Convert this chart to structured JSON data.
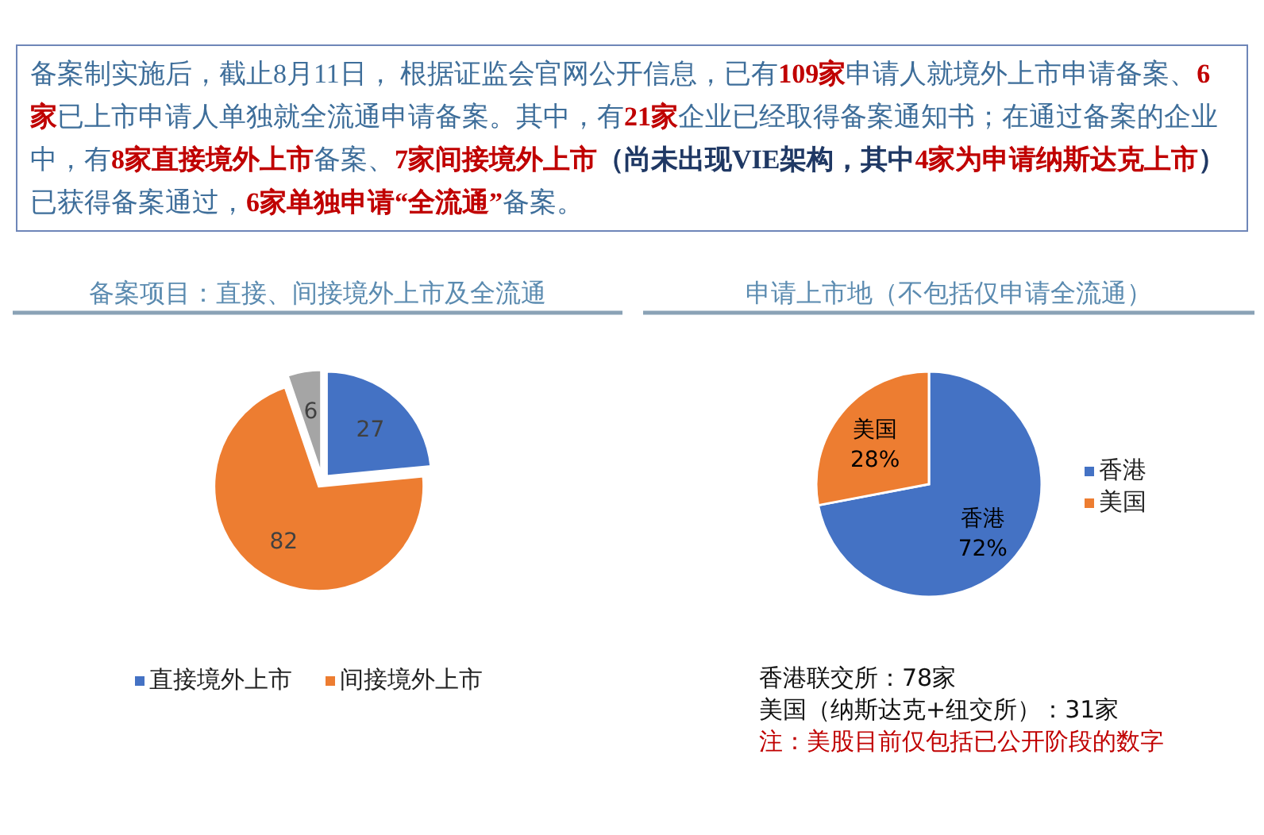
{
  "chart_data": [
    {
      "type": "other",
      "annotations": [
        "备案制实施后，截止8月11日， 根据证监会官网公开信息，已有",
        "109家",
        "申请人就境外上市申请备案、",
        "6家",
        "已上市申请人单独就全流通申请备案。其中，有",
        "21家",
        "企业已经取得备案通知书；在通过备案的企业中，有",
        "8家直接境外上市",
        "备案、",
        "7家间接境外上市",
        "（尚未出现VIE架构，其中",
        "4家为申请纳斯达克上市",
        "）",
        "已获得备案通过，",
        "6家单独申请“全流通”",
        "备案。"
      ],
      "colors": [
        "#3e6e9a",
        "#c00000",
        "#3e6e9a",
        "#c00000",
        "#3e6e9a",
        "#c00000",
        "#3e6e9a",
        "#c00000",
        "#3e6e9a",
        "#c00000",
        "#1f3864",
        "#c00000",
        "#1f3864",
        "#3e6e9a",
        "#c00000",
        "#3e6e9a"
      ]
    },
    {
      "type": "pie",
      "title": "备案项目：直接、间接境外上市及全流通",
      "categories": [
        "直接境外上市",
        "间接境外上市",
        null
      ],
      "values": [
        27,
        82,
        6
      ],
      "colors": [
        "#4472c4",
        "#ed7d31",
        "#a5a5a5"
      ],
      "data_labels": true,
      "legend": "bottom"
    },
    {
      "type": "pie",
      "title": "申请上市地（不包括仅申请全流通）",
      "categories": [
        "香港",
        "美国"
      ],
      "values": [
        72,
        28
      ],
      "colors": [
        "#4472c4",
        "#ed7d31"
      ],
      "value_labels": [
        "72%",
        "28%"
      ],
      "legend": "right",
      "annotations": [
        "香港联交所：78家",
        "美国（纳斯达克+纽交所）：31家",
        "注：美股目前仅包括已公开阶段的数字"
      ]
    }
  ]
}
